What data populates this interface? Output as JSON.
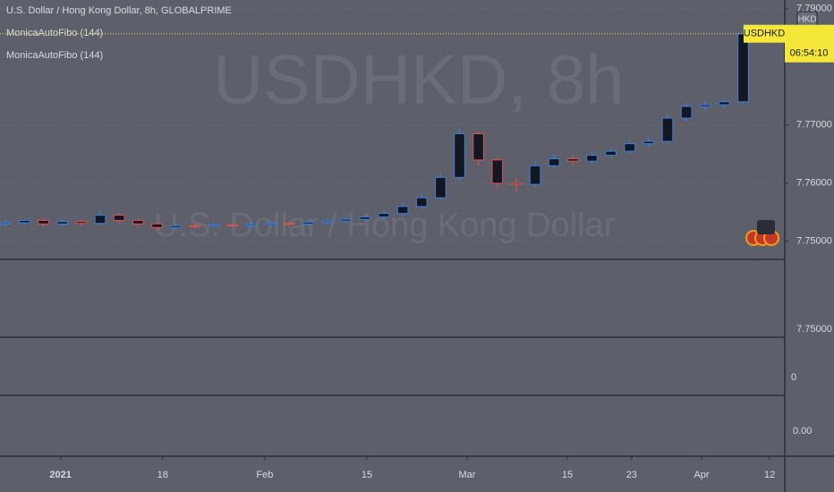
{
  "chart_data": {
    "type": "candlestick",
    "title": "U.S. Dollar / Hong Kong Dollar, 8h, GLOBALPRIME",
    "indicators": [
      "MonicaAutoFibo (144)",
      "MonicaAutoFibo (144)"
    ],
    "watermark": "USDHKD, 8h",
    "watermark_subtitle": "U.S. Dollar / Hong Kong Dollar",
    "symbol_label": "USDHKD",
    "countdown": "06:54:10",
    "currency": "HKD",
    "up_color": "#3d7fd9",
    "down_color": "#d9534f",
    "ohlc": [
      [
        7.753,
        7.7537,
        7.7525,
        7.7532
      ],
      [
        7.7532,
        7.7541,
        7.7527,
        7.7536
      ],
      [
        7.7536,
        7.754,
        7.7525,
        7.753
      ],
      [
        7.753,
        7.7539,
        7.7526,
        7.7534
      ],
      [
        7.7534,
        7.7538,
        7.7526,
        7.7531
      ],
      [
        7.7531,
        7.7555,
        7.7527,
        7.7545
      ],
      [
        7.7545,
        7.7549,
        7.7531,
        7.7536
      ],
      [
        7.7536,
        7.754,
        7.7525,
        7.753
      ],
      [
        7.753,
        7.7534,
        7.7518,
        7.7524
      ],
      [
        7.7524,
        7.7532,
        7.752,
        7.7527
      ],
      [
        7.7527,
        7.7531,
        7.7521,
        7.7526
      ],
      [
        7.7526,
        7.7533,
        7.7522,
        7.7528
      ],
      [
        7.7528,
        7.7532,
        7.7522,
        7.7527
      ],
      [
        7.7527,
        7.7534,
        7.7523,
        7.7529
      ],
      [
        7.7529,
        7.7536,
        7.7525,
        7.7531
      ],
      [
        7.7531,
        7.7535,
        7.7524,
        7.753
      ],
      [
        7.753,
        7.7538,
        7.7526,
        7.7533
      ],
      [
        7.7533,
        7.754,
        7.7529,
        7.7535
      ],
      [
        7.7535,
        7.7543,
        7.7531,
        7.7538
      ],
      [
        7.7538,
        7.7547,
        7.7534,
        7.7542
      ],
      [
        7.7542,
        7.7553,
        7.7538,
        7.7548
      ],
      [
        7.7548,
        7.7568,
        7.7543,
        7.756
      ],
      [
        7.756,
        7.7582,
        7.7555,
        7.7575
      ],
      [
        7.7575,
        7.7618,
        7.757,
        7.761
      ],
      [
        7.761,
        7.7695,
        7.7605,
        7.7685
      ],
      [
        7.7685,
        7.769,
        7.763,
        7.764
      ],
      [
        7.764,
        7.7646,
        7.759,
        7.76
      ],
      [
        7.76,
        7.7608,
        7.7585,
        7.7598
      ],
      [
        7.7598,
        7.7638,
        7.7593,
        7.763
      ],
      [
        7.763,
        7.765,
        7.7625,
        7.7642
      ],
      [
        7.7642,
        7.7648,
        7.763,
        7.7638
      ],
      [
        7.7638,
        7.7655,
        7.7633,
        7.7648
      ],
      [
        7.7648,
        7.7662,
        7.7643,
        7.7655
      ],
      [
        7.7655,
        7.7675,
        7.765,
        7.7668
      ],
      [
        7.7668,
        7.768,
        7.7662,
        7.7672
      ],
      [
        7.7672,
        7.772,
        7.7668,
        7.7712
      ],
      [
        7.7712,
        7.774,
        7.7706,
        7.7732
      ],
      [
        7.7732,
        7.7742,
        7.7724,
        7.7735
      ],
      [
        7.7735,
        7.7746,
        7.7728,
        7.774
      ],
      [
        7.774,
        7.787,
        7.7735,
        7.7857
      ]
    ],
    "xlim": [
      -0.3,
      41.2
    ],
    "xticks": [
      {
        "value": 2.9,
        "label": "2021"
      },
      {
        "value": 8.3,
        "label": "18"
      },
      {
        "value": 13.7,
        "label": "Feb"
      },
      {
        "value": 19.1,
        "label": "15"
      },
      {
        "value": 24.4,
        "label": "Mar"
      },
      {
        "value": 29.7,
        "label": "15"
      },
      {
        "value": 33.1,
        "label": "23"
      },
      {
        "value": 36.8,
        "label": "Apr"
      },
      {
        "value": 40.4,
        "label": "12"
      }
    ],
    "ylim": [
      7.7469,
      7.7915
    ],
    "yticks": [
      {
        "value": 7.75,
        "label": "7.75000"
      },
      {
        "value": 7.76,
        "label": "7.76000"
      },
      {
        "value": 7.77,
        "label": "7.77000"
      },
      {
        "value": 7.79,
        "label": "7.79000"
      }
    ],
    "panes": [
      "7.75000",
      "0",
      "0.00"
    ]
  }
}
